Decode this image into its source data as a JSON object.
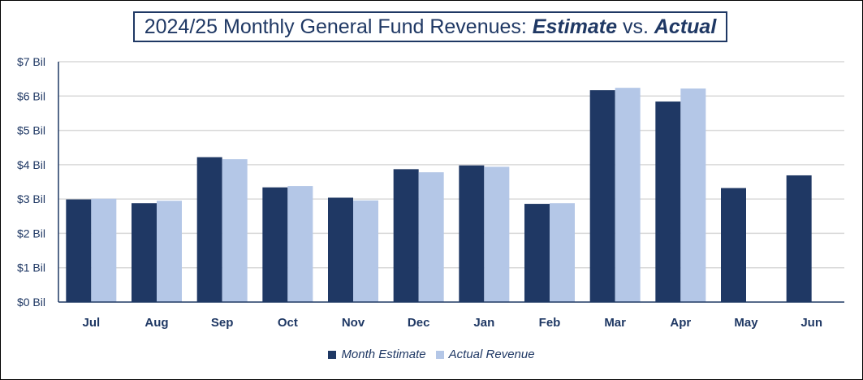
{
  "title": {
    "prefix": "2024/25 Monthly General Fund Revenues: ",
    "estimate_word": "Estimate",
    "vs": " vs. ",
    "actual_word": "Actual"
  },
  "colors": {
    "estimate": "#1f3864",
    "actual": "#b4c7e7",
    "grid": "#d9d9d9",
    "axis": "#1f3864",
    "text": "#1f3864"
  },
  "chart_data": {
    "type": "bar",
    "title": "2024/25 Monthly General Fund Revenues: Estimate vs. Actual",
    "categories": [
      "Jul",
      "Aug",
      "Sep",
      "Oct",
      "Nov",
      "Dec",
      "Jan",
      "Feb",
      "Mar",
      "Apr",
      "May",
      "Jun"
    ],
    "series": [
      {
        "name": "Month Estimate",
        "values": [
          2.99,
          2.88,
          4.22,
          3.34,
          3.04,
          3.87,
          3.98,
          2.86,
          6.17,
          5.84,
          3.32,
          3.69
        ]
      },
      {
        "name": "Actual Revenue",
        "values": [
          3.01,
          2.95,
          4.16,
          3.38,
          2.96,
          3.78,
          3.94,
          2.88,
          6.24,
          6.22,
          null,
          null
        ]
      }
    ],
    "ylim": [
      0,
      7
    ],
    "yticks": [
      0,
      1,
      2,
      3,
      4,
      5,
      6,
      7
    ],
    "ytick_labels": [
      "$0 Bil",
      "$1 Bil",
      "$2 Bil",
      "$3 Bil",
      "$4 Bil",
      "$5 Bil",
      "$6 Bil",
      "$7 Bil"
    ],
    "xlabel": "",
    "ylabel": "",
    "grid": true,
    "legend_position": "bottom"
  }
}
